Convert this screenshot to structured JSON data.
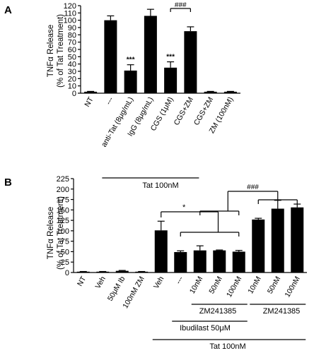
{
  "chart_data": [
    {
      "panel_label": "A",
      "type": "bar",
      "ylabel_line1": "TNFα Release",
      "ylabel_line2": "(% of Tat Treatment)",
      "ylim": [
        0,
        120
      ],
      "yticks": [
        0,
        10,
        20,
        30,
        40,
        50,
        60,
        70,
        80,
        90,
        100,
        110,
        120
      ],
      "categories": [
        "NT",
        "---",
        "anti-Tat (8μg/mL)",
        "IgG (8μg/mL)",
        "CGS (1μM)",
        "CGS+ZM",
        "CGS+ZM",
        "ZM (100nM)"
      ],
      "values": [
        2,
        100,
        31,
        106,
        35,
        85,
        2,
        2
      ],
      "errors": [
        0.5,
        6,
        8,
        9,
        8,
        6,
        0.5,
        0.5
      ],
      "significance": [
        {
          "bar": 2,
          "text": "***"
        },
        {
          "bar": 4,
          "text": "***"
        }
      ],
      "comparisons": [
        {
          "from": 4,
          "to": 5,
          "text": "###"
        }
      ],
      "groups": [
        {
          "label": "Tat 100nM",
          "from": 1,
          "to": 5
        }
      ]
    },
    {
      "panel_label": "B",
      "type": "bar",
      "ylabel_line1": "TNFα Release",
      "ylabel_line2": "(% of Tat Treatment)",
      "ylim": [
        0,
        225
      ],
      "yticks": [
        0,
        25,
        50,
        75,
        100,
        125,
        150,
        175,
        200,
        225
      ],
      "categories": [
        "NT",
        "Veh",
        "50μM Ib",
        "100nM ZM",
        "Veh",
        "---",
        "10nM",
        "50nM",
        "100nM",
        "10nM",
        "50nM",
        "100nM"
      ],
      "values": [
        2,
        2,
        4,
        2,
        101,
        49,
        53,
        53,
        50,
        127,
        153,
        156
      ],
      "errors": [
        0.5,
        0.5,
        1,
        0.5,
        22,
        3,
        11,
        1,
        3,
        3,
        20,
        8
      ],
      "comparisons": [
        {
          "from": 4,
          "to_group": [
            5,
            8
          ],
          "text": "*"
        },
        {
          "from_group": [
            6,
            8
          ],
          "to_group": [
            9,
            11
          ],
          "text": "###"
        }
      ],
      "groups": [
        {
          "label": "ZM241385",
          "from": 6,
          "to": 8
        },
        {
          "label": "ZM241385",
          "from": 9,
          "to": 11
        },
        {
          "label": "Ibudilast 50μM",
          "from": 5,
          "to": 8
        },
        {
          "label": "Tat 100nM",
          "from": 4,
          "to": 11
        }
      ]
    }
  ]
}
